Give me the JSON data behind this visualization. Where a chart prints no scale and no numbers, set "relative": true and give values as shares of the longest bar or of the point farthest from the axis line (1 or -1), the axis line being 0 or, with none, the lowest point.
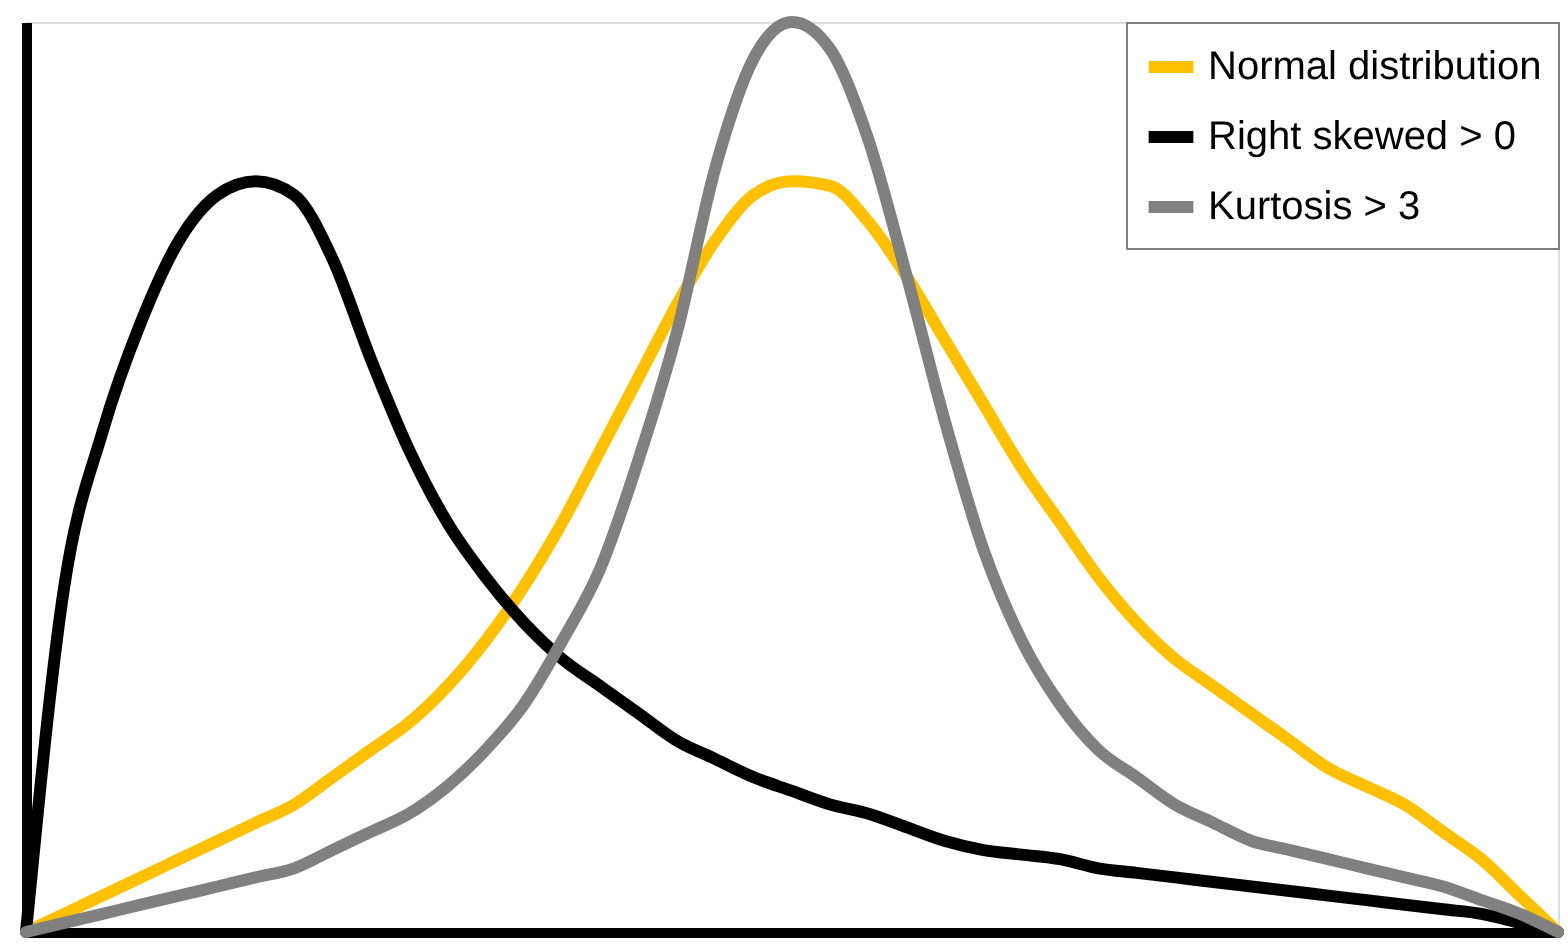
{
  "chart_data": {
    "type": "line",
    "relative": true,
    "tick_labels": false,
    "grid": false,
    "legend": "top right",
    "line_style": "solid",
    "marker": "none",
    "categories": [
      null,
      null,
      null,
      null,
      null,
      null,
      null,
      null,
      null,
      null,
      null,
      null,
      null,
      null,
      null,
      null,
      null,
      null,
      null,
      null,
      null,
      null,
      null,
      null,
      null,
      null,
      null,
      null,
      null,
      null,
      null,
      null,
      null,
      null,
      null,
      null,
      null,
      null,
      null,
      null,
      null
    ],
    "series": [
      {
        "name": "Normal distribution",
        "color": "#ffc000",
        "values": [
          0,
          0.02,
          0.04,
          0.06,
          0.08,
          0.1,
          0.12,
          0.14,
          0.17,
          0.2,
          0.23,
          0.27,
          0.32,
          0.38,
          0.45,
          0.53,
          0.61,
          0.69,
          0.76,
          0.81,
          0.825,
          0.82,
          0.78,
          0.72,
          0.65,
          0.58,
          0.51,
          0.45,
          0.39,
          0.34,
          0.3,
          0.27,
          0.24,
          0.21,
          0.18,
          0.16,
          0.14,
          0.11,
          0.08,
          0.04,
          0
        ]
      },
      {
        "name": "Right skewed > 0",
        "color": "#000000",
        "values": [
          0,
          0.38,
          0.55,
          0.67,
          0.76,
          0.81,
          0.825,
          0.81,
          0.74,
          0.63,
          0.53,
          0.45,
          0.39,
          0.34,
          0.3,
          0.27,
          0.24,
          0.21,
          0.19,
          0.17,
          0.155,
          0.14,
          0.13,
          0.115,
          0.1,
          0.09,
          0.085,
          0.08,
          0.07,
          0.065,
          0.06,
          0.055,
          0.05,
          0.045,
          0.04,
          0.035,
          0.03,
          0.025,
          0.02,
          0.01,
          0
        ]
      },
      {
        "name": "Kurtosis > 3",
        "color": "#808080",
        "values": [
          0,
          0.01,
          0.02,
          0.03,
          0.04,
          0.05,
          0.06,
          0.07,
          0.09,
          0.11,
          0.13,
          0.16,
          0.2,
          0.25,
          0.32,
          0.4,
          0.52,
          0.66,
          0.84,
          0.96,
          1.0,
          0.97,
          0.87,
          0.72,
          0.56,
          0.42,
          0.32,
          0.25,
          0.2,
          0.17,
          0.14,
          0.12,
          0.1,
          0.09,
          0.08,
          0.07,
          0.06,
          0.05,
          0.035,
          0.02,
          0
        ]
      }
    ]
  }
}
